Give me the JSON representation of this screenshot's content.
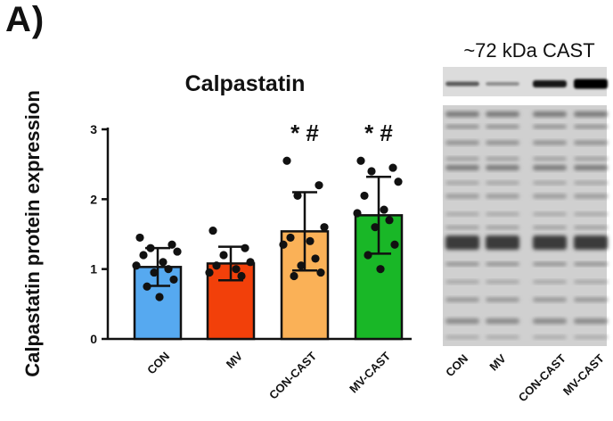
{
  "panel_label": "A)",
  "chart_data": {
    "type": "bar",
    "title": "Calpastatin",
    "xlabel": "",
    "ylabel": "Calpastatin protein expression",
    "ylim": [
      0,
      3
    ],
    "yticks": [
      0,
      1,
      2,
      3
    ],
    "categories": [
      "CON",
      "MV",
      "CON-CAST",
      "MV-CAST"
    ],
    "values": [
      1.03,
      1.08,
      1.54,
      1.77
    ],
    "error_sd": [
      0.27,
      0.24,
      0.56,
      0.55
    ],
    "significance": [
      "",
      "",
      "* #",
      "* #"
    ],
    "colors": [
      "#56a9f0",
      "#f2400a",
      "#fab157",
      "#19b727"
    ],
    "points": [
      [
        1.45,
        1.35,
        1.3,
        1.25,
        1.2,
        1.1,
        1.05,
        1.0,
        0.95,
        0.85,
        0.75,
        0.6
      ],
      [
        1.55,
        1.3,
        1.2,
        1.1,
        1.05,
        1.0,
        0.95,
        0.9
      ],
      [
        2.55,
        2.2,
        2.05,
        1.6,
        1.45,
        1.4,
        1.35,
        1.15,
        1.05,
        0.95,
        0.9
      ],
      [
        2.55,
        2.45,
        2.4,
        2.25,
        2.05,
        1.85,
        1.8,
        1.7,
        1.6,
        1.35,
        1.2,
        1.0
      ]
    ]
  },
  "blot": {
    "header": "~72 kDa CAST",
    "lanes": [
      "CON",
      "MV",
      "CON-CAST",
      "MV-CAST"
    ]
  }
}
